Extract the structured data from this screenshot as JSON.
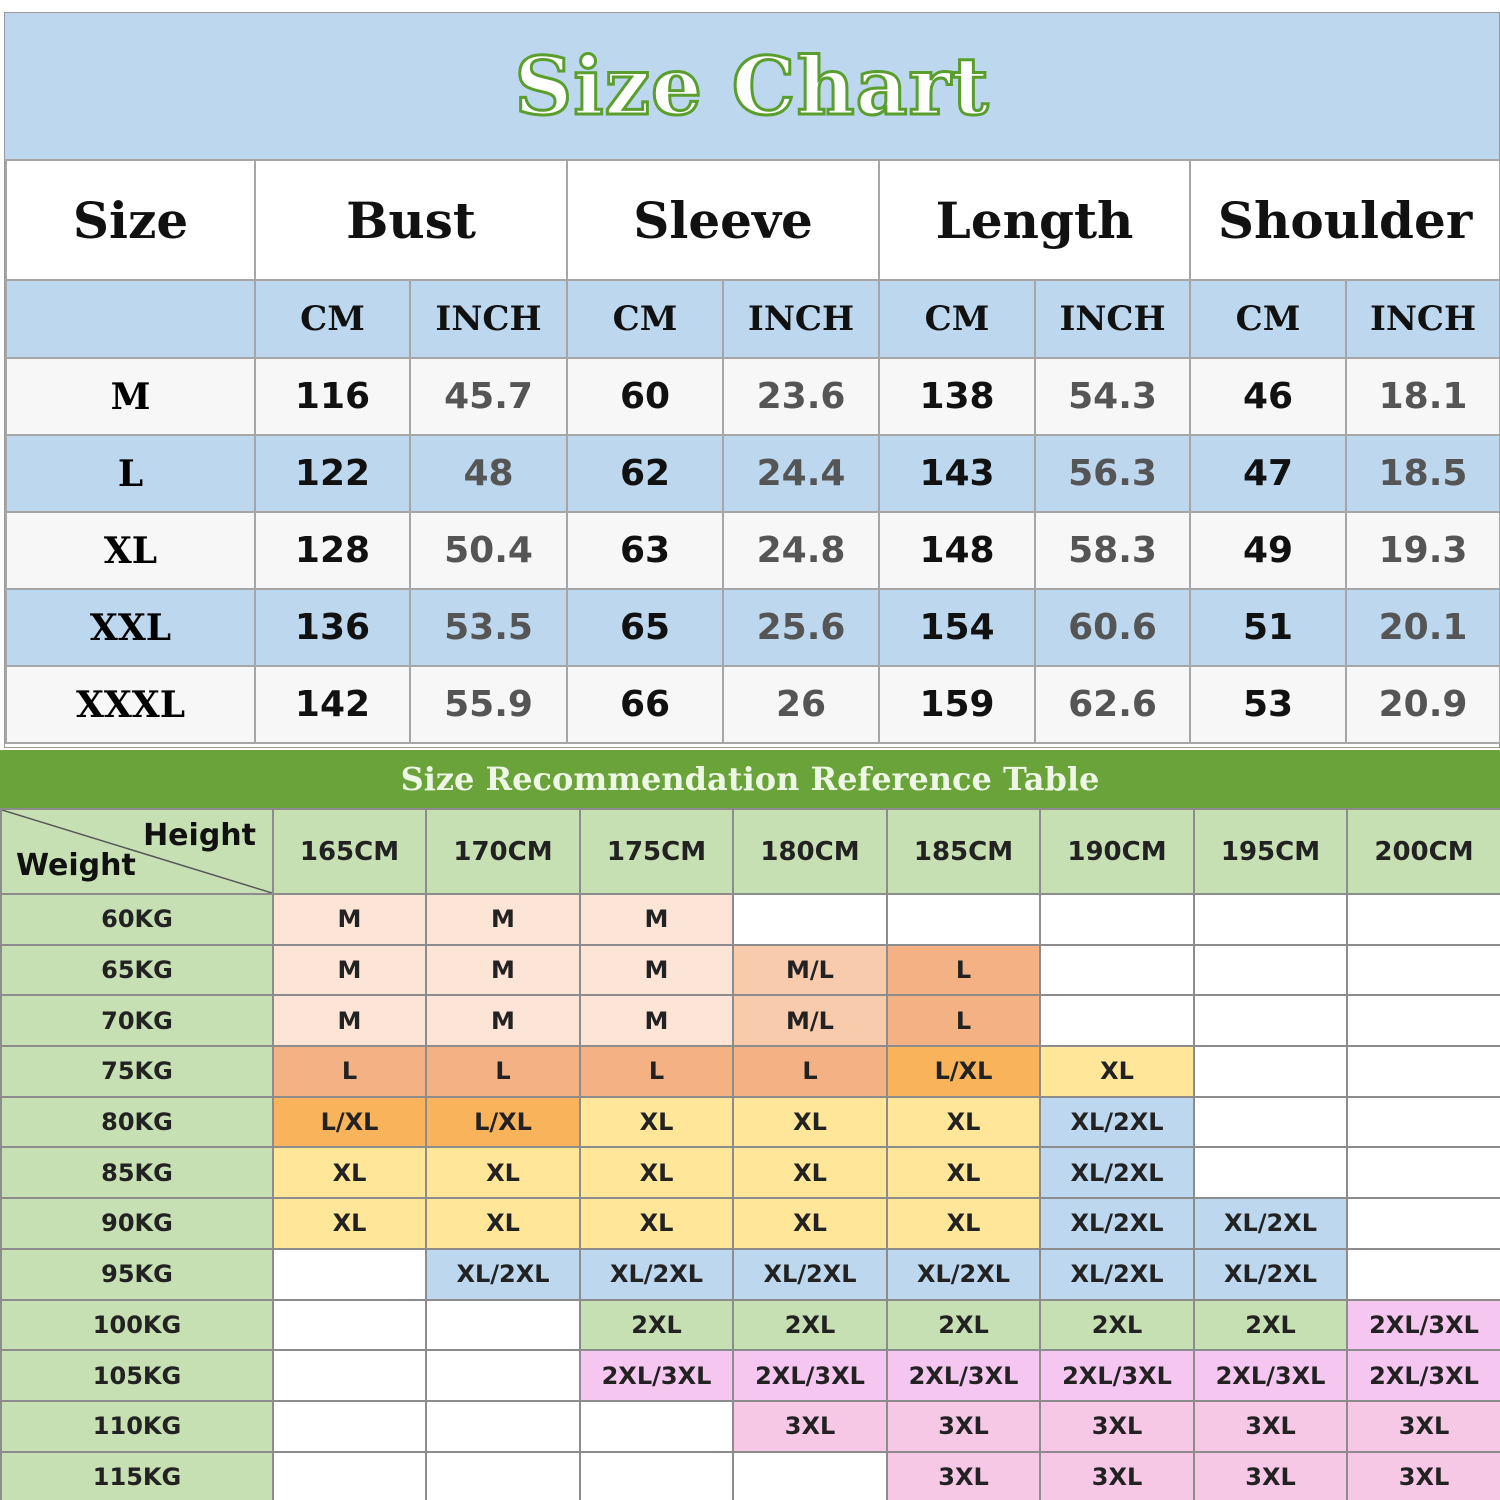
{
  "size_chart": {
    "title": "Size Chart",
    "headers": [
      "Size",
      "Bust",
      "Sleeve",
      "Length",
      "Shoulder"
    ],
    "units": [
      "CM",
      "INCH",
      "CM",
      "INCH",
      "CM",
      "INCH",
      "CM",
      "INCH"
    ],
    "rows": [
      {
        "size": "M",
        "values": [
          "116",
          "45.7",
          "60",
          "23.6",
          "138",
          "54.3",
          "46",
          "18.1"
        ]
      },
      {
        "size": "L",
        "values": [
          "122",
          "48",
          "62",
          "24.4",
          "143",
          "56.3",
          "47",
          "18.5"
        ]
      },
      {
        "size": "XL",
        "values": [
          "128",
          "50.4",
          "63",
          "24.8",
          "148",
          "58.3",
          "49",
          "19.3"
        ]
      },
      {
        "size": "XXL",
        "values": [
          "136",
          "53.5",
          "65",
          "25.6",
          "154",
          "60.6",
          "51",
          "20.1"
        ]
      },
      {
        "size": "XXXL",
        "values": [
          "142",
          "55.9",
          "66",
          "26",
          "159",
          "62.6",
          "53",
          "20.9"
        ]
      }
    ]
  },
  "recommendation": {
    "title": "Size Recommendation Reference Table",
    "corner_height": "Height",
    "corner_weight": "Weight",
    "heights": [
      "165CM",
      "170CM",
      "175CM",
      "180CM",
      "185CM",
      "190CM",
      "195CM",
      "200CM"
    ],
    "colors": {
      "M": "#fce4d6",
      "M/L": "#f8cbad",
      "L": "#f4b183",
      "L/XL": "#f9b45b",
      "XL": "#ffe699",
      "XL/2XL": "#bdd7ee",
      "2XL": "#c6e0b4",
      "2XL/3XL": "#f4c6f0",
      "3XL": "#f6c8e6",
      "": "#ffffff"
    },
    "rows": [
      {
        "weight": "60KG",
        "cells": [
          "M",
          "M",
          "M",
          "",
          "",
          "",
          "",
          ""
        ]
      },
      {
        "weight": "65KG",
        "cells": [
          "M",
          "M",
          "M",
          "M/L",
          "L",
          "",
          "",
          ""
        ]
      },
      {
        "weight": "70KG",
        "cells": [
          "M",
          "M",
          "M",
          "M/L",
          "L",
          "",
          "",
          ""
        ]
      },
      {
        "weight": "75KG",
        "cells": [
          "L",
          "L",
          "L",
          "L",
          "L/XL",
          "XL",
          "",
          ""
        ]
      },
      {
        "weight": "80KG",
        "cells": [
          "L/XL",
          "L/XL",
          "XL",
          "XL",
          "XL",
          "XL/2XL",
          "",
          ""
        ]
      },
      {
        "weight": "85KG",
        "cells": [
          "XL",
          "XL",
          "XL",
          "XL",
          "XL",
          "XL/2XL",
          "",
          ""
        ]
      },
      {
        "weight": "90KG",
        "cells": [
          "XL",
          "XL",
          "XL",
          "XL",
          "XL",
          "XL/2XL",
          "XL/2XL",
          ""
        ]
      },
      {
        "weight": "95KG",
        "cells": [
          "",
          "XL/2XL",
          "XL/2XL",
          "XL/2XL",
          "XL/2XL",
          "XL/2XL",
          "XL/2XL",
          ""
        ]
      },
      {
        "weight": "100KG",
        "cells": [
          "",
          "",
          "2XL",
          "2XL",
          "2XL",
          "2XL",
          "2XL",
          "2XL/3XL"
        ]
      },
      {
        "weight": "105KG",
        "cells": [
          "",
          "",
          "2XL/3XL",
          "2XL/3XL",
          "2XL/3XL",
          "2XL/3XL",
          "2XL/3XL",
          "2XL/3XL"
        ]
      },
      {
        "weight": "110KG",
        "cells": [
          "",
          "",
          "",
          "3XL",
          "3XL",
          "3XL",
          "3XL",
          "3XL"
        ]
      },
      {
        "weight": "115KG",
        "cells": [
          "",
          "",
          "",
          "",
          "3XL",
          "3XL",
          "3XL",
          "3XL"
        ]
      }
    ]
  }
}
